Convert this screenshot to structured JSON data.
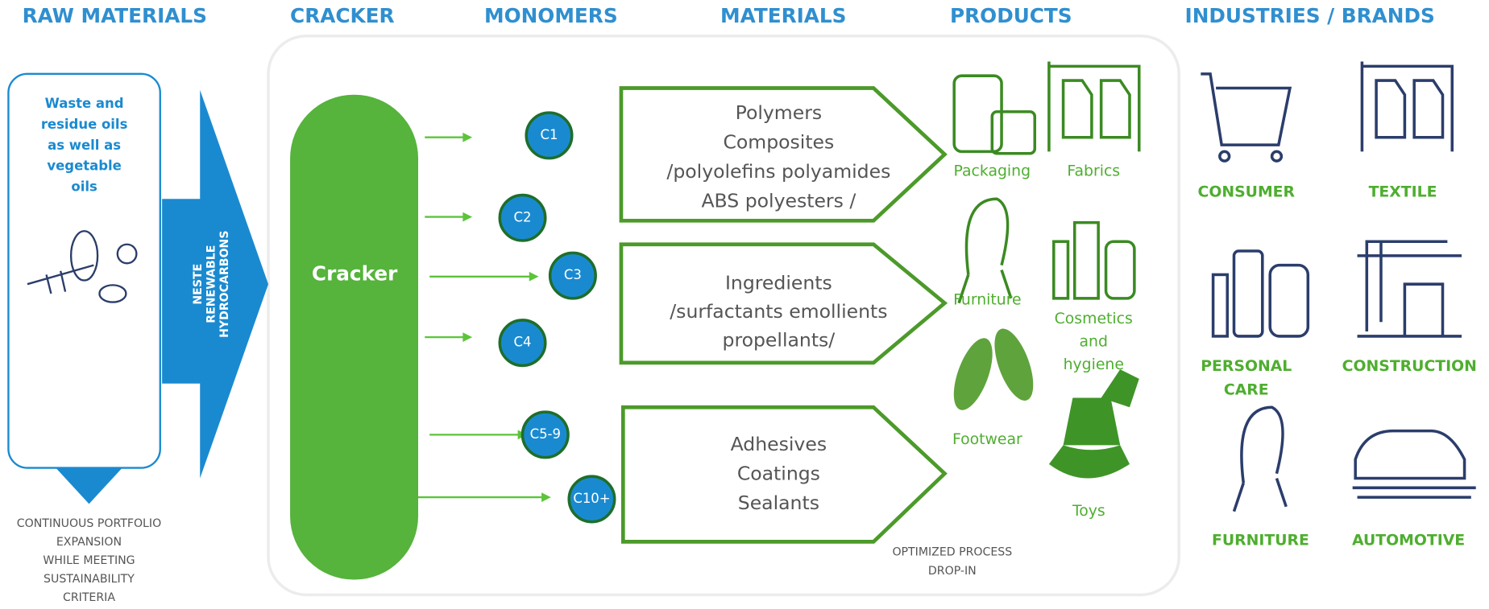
{
  "column_headers": [
    "RAW MATERIALS",
    "CRACKER",
    "MONOMERS",
    "MATERIALS",
    "PRODUCTS",
    "INDUSTRIES / BRANDS"
  ],
  "raw_material": {
    "lines": [
      "Waste and",
      "residue oils",
      "as well as",
      "vegetable",
      "oils"
    ]
  },
  "arrow_label": {
    "lines": [
      "NESTE",
      "RENEWABLE",
      "HYDROCARBONS"
    ]
  },
  "footnote": {
    "lines": [
      "CONTINUOUS PORTFOLIO",
      "EXPANSION",
      "WHILE MEETING",
      "SUSTAINABILITY",
      "CRITERIA"
    ]
  },
  "cracker": {
    "label": "Cracker"
  },
  "monomers": [
    "C1",
    "C2",
    "C3",
    "C4",
    "C5-9",
    "C10+"
  ],
  "materials": [
    {
      "lines": [
        "Polymers",
        "Composites",
        "/polyolefins polyamides",
        "ABS polyesters /"
      ]
    },
    {
      "lines": [
        "Ingredients",
        "/surfactants emollients",
        "propellants/"
      ]
    },
    {
      "lines": [
        "Adhesives",
        "Coatings",
        "Sealants"
      ]
    }
  ],
  "products": [
    {
      "lines": [
        "Packaging"
      ]
    },
    {
      "lines": [
        "Fabrics"
      ]
    },
    {
      "lines": [
        "Furniture"
      ]
    },
    {
      "lines": [
        "Cosmetics",
        "and",
        "hygiene"
      ]
    },
    {
      "lines": [
        "Footwear"
      ]
    },
    {
      "lines": [
        "Toys"
      ]
    }
  ],
  "process_note": {
    "lines": [
      "OPTIMIZED PROCESS",
      "DROP-IN"
    ]
  },
  "industries": [
    {
      "lines": [
        "CONSUMER"
      ]
    },
    {
      "lines": [
        "TEXTILE"
      ]
    },
    {
      "lines": [
        "PERSONAL",
        "CARE"
      ]
    },
    {
      "lines": [
        "CONSTRUCTION"
      ]
    },
    {
      "lines": [
        "FURNITURE"
      ]
    },
    {
      "lines": [
        "AUTOMOTIVE"
      ]
    }
  ]
}
